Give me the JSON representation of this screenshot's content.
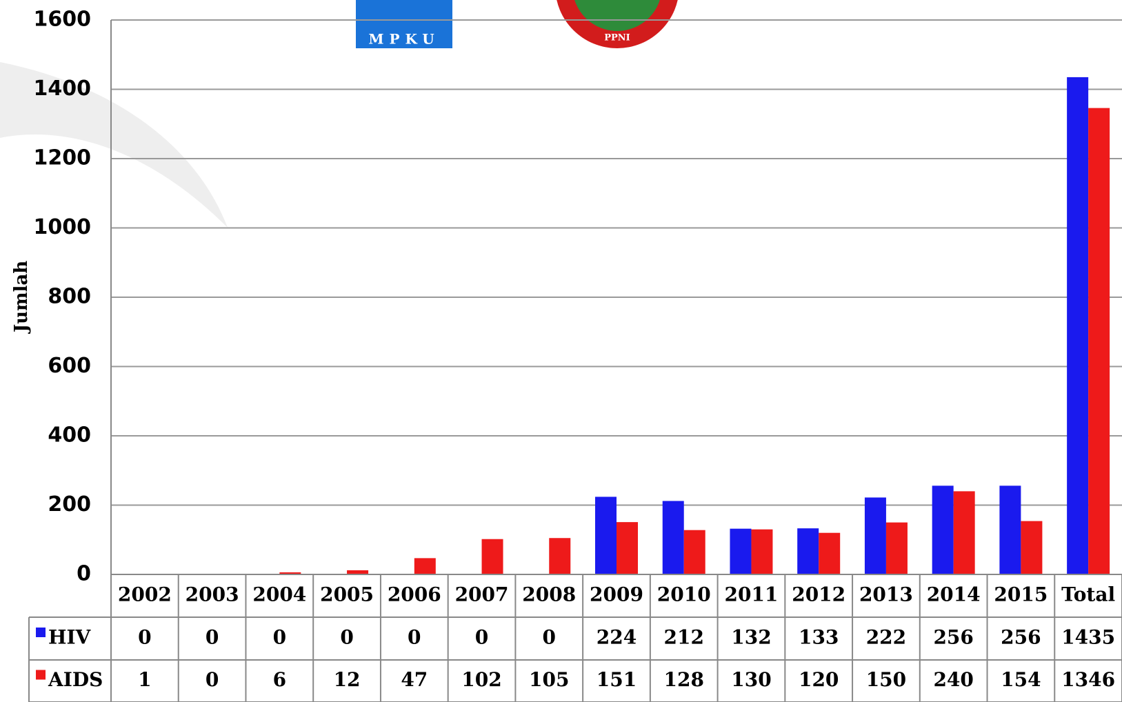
{
  "logos": [
    "MPKU",
    "PPNI"
  ],
  "chart_data": {
    "type": "bar",
    "y_label": "Jumlah",
    "categories": [
      "2002",
      "2003",
      "2004",
      "2005",
      "2006",
      "2007",
      "2008",
      "2009",
      "2010",
      "2011",
      "2012",
      "2013",
      "2014",
      "2015",
      "Total"
    ],
    "series": [
      {
        "name": "HIV",
        "color": "#1a1aee",
        "values": [
          0,
          0,
          0,
          0,
          0,
          0,
          0,
          224,
          212,
          132,
          133,
          222,
          256,
          256,
          1435
        ]
      },
      {
        "name": "AIDS",
        "color": "#ee1a1a",
        "values": [
          1,
          0,
          6,
          12,
          47,
          102,
          105,
          151,
          128,
          130,
          120,
          150,
          240,
          154,
          1346
        ]
      }
    ],
    "ylim": [
      0,
      1600
    ],
    "yticks": [
      0,
      200,
      400,
      600,
      800,
      1000,
      1200,
      1400,
      1600
    ],
    "grid": true
  }
}
